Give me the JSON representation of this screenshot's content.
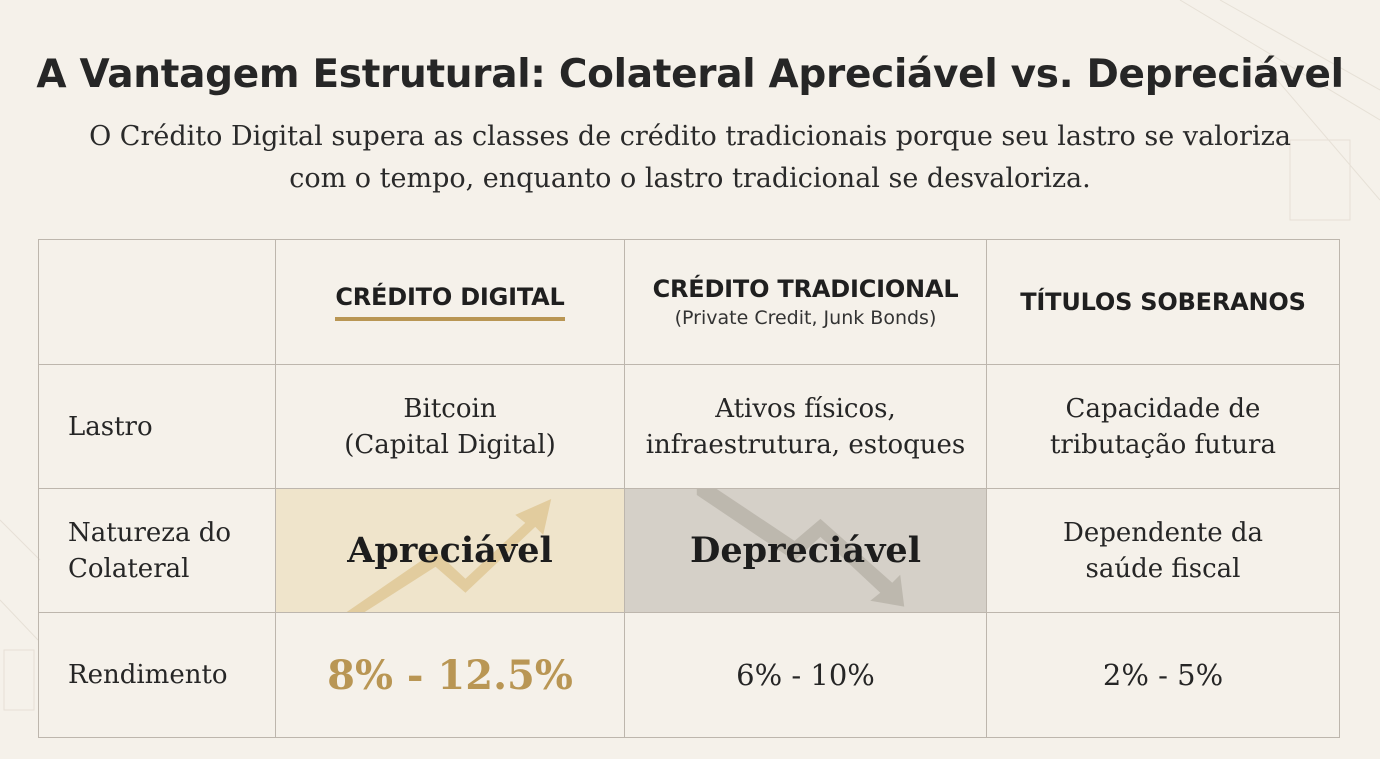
{
  "title": "A Vantagem Estrutural: Colateral Apreciável vs. Depreciável",
  "subtitle_line1": "O Crédito Digital supera as classes de crédito tradicionais porque seu lastro se valoriza",
  "subtitle_line2": "com o tempo, enquanto o lastro tradicional se desvaloriza.",
  "columns": [
    {
      "title": "CRÉDITO DIGITAL",
      "subtitle": ""
    },
    {
      "title": "CRÉDITO TRADICIONAL",
      "subtitle": "(Private Credit, Junk Bonds)"
    },
    {
      "title": "TÍTULOS SOBERANOS",
      "subtitle": ""
    }
  ],
  "rows": [
    {
      "label_line1": "Lastro",
      "label_line2": "",
      "cells": [
        {
          "line1": "Bitcoin",
          "line2": "(Capital Digital)"
        },
        {
          "line1": "Ativos físicos,",
          "line2": "infraestrutura, estoques"
        },
        {
          "line1": "Capacidade de",
          "line2": "tributação futura"
        }
      ]
    },
    {
      "label_line1": "Natureza do",
      "label_line2": "Colateral",
      "cells": [
        {
          "line1": "Apreciável",
          "line2": ""
        },
        {
          "line1": "Depreciável",
          "line2": ""
        },
        {
          "line1": "Dependente da",
          "line2": "saúde fiscal"
        }
      ]
    },
    {
      "label_line1": "Rendimento",
      "label_line2": "",
      "cells": [
        {
          "line1": "8% - 12.5%",
          "line2": ""
        },
        {
          "line1": "6% - 10%",
          "line2": ""
        },
        {
          "line1": "2% - 5%",
          "line2": ""
        }
      ]
    }
  ],
  "colors": {
    "accent_gold": "#b99654",
    "appreciable_bg": "#efe4cb",
    "depreciable_bg": "#d5d0c8",
    "page_bg": "#f5f1ea"
  },
  "icons": {
    "appreciable": "trend-up-arrow-icon",
    "depreciable": "trend-down-arrow-icon"
  }
}
